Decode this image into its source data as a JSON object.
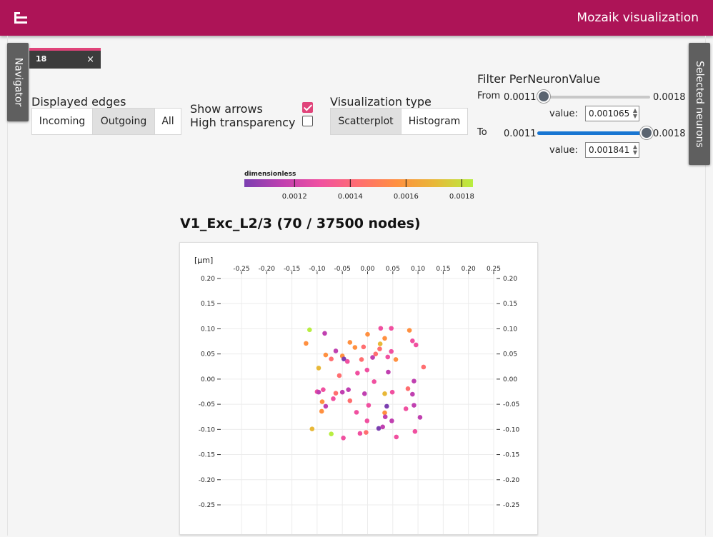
{
  "header": {
    "title": "Mozaik visualization",
    "logo": "tree-icon"
  },
  "navigator_label": "Navigator",
  "selected_label": "Selected neurons",
  "dock_tab": {
    "label": "18",
    "close": "×"
  },
  "displayed_edges": {
    "label": "Displayed edges",
    "options": [
      "Incoming",
      "Outgoing",
      "All"
    ],
    "selected": "Outgoing"
  },
  "arrows": {
    "show_label": "Show arrows",
    "show_checked": true,
    "transparency_label": "High transparency",
    "transparency_checked": false
  },
  "vis_type": {
    "label": "Visualization type",
    "options": [
      "Scatterplot",
      "Histogram"
    ],
    "selected": "Scatterplot"
  },
  "filter": {
    "title": "Filter PerNeuronValue",
    "from_label": "From",
    "to_label": "To",
    "min_label": "0.0011",
    "max_label": "0.0018",
    "min": 0.0011,
    "max": 0.0018,
    "from_value": 0.001065,
    "to_value": 0.001841,
    "value_label": "value:",
    "from_input": "0.001065",
    "to_input": "0.001841"
  },
  "colorbar": {
    "unit": "dimensionless",
    "min": 0.00102,
    "max": 0.00184,
    "ticks": [
      0.0012,
      0.0014,
      0.0016,
      0.0018
    ],
    "tick_labels": [
      "0.0012",
      "0.0014",
      "0.0016",
      "0.0018"
    ],
    "colors": [
      "#7b3fb0",
      "#c040b0",
      "#f050a0",
      "#ff6e70",
      "#ff9040",
      "#e8b838",
      "#b8ee40"
    ]
  },
  "chart_data": {
    "type": "scatter",
    "title": "V1_Exc_L2/3 (70 / 37500 nodes)",
    "unit_label": "[µm]",
    "xlim": [
      -0.25,
      0.25
    ],
    "ylim": [
      -0.25,
      0.2
    ],
    "xticks": [
      -0.25,
      -0.2,
      -0.15,
      -0.1,
      -0.05,
      0.0,
      0.05,
      0.1,
      0.15,
      0.2,
      0.25
    ],
    "yticks": [
      0.2,
      0.15,
      0.1,
      0.05,
      0.0,
      -0.05,
      -0.1,
      -0.15,
      -0.2,
      -0.25
    ],
    "xtick_labels": [
      "-0.25",
      "-0.20",
      "-0.15",
      "-0.10",
      "-0.05",
      "0.00",
      "0.05",
      "0.10",
      "0.15",
      "0.20",
      "0.25"
    ],
    "ytick_labels": [
      "0.20",
      "0.15",
      "0.10",
      "0.05",
      "0.00",
      "-0.05",
      "-0.10",
      "-0.15",
      "-0.20",
      "-0.25"
    ],
    "grid": true,
    "points": [
      {
        "x": -0.115,
        "y": 0.098,
        "c": "#b8ee40"
      },
      {
        "x": -0.085,
        "y": 0.091,
        "c": "#c040b0"
      },
      {
        "x": -0.122,
        "y": 0.071,
        "c": "#ff9040"
      },
      {
        "x": -0.063,
        "y": 0.056,
        "c": "#c040b0"
      },
      {
        "x": -0.035,
        "y": 0.073,
        "c": "#ff9040"
      },
      {
        "x": -0.025,
        "y": 0.063,
        "c": "#ff9040"
      },
      {
        "x": 0.0,
        "y": 0.089,
        "c": "#ff9040"
      },
      {
        "x": 0.026,
        "y": 0.101,
        "c": "#f050a0"
      },
      {
        "x": 0.047,
        "y": 0.101,
        "c": "#f050a0"
      },
      {
        "x": 0.083,
        "y": 0.097,
        "c": "#ff9040"
      },
      {
        "x": 0.034,
        "y": 0.081,
        "c": "#ff9040"
      },
      {
        "x": -0.008,
        "y": 0.064,
        "c": "#ff6e70"
      },
      {
        "x": 0.024,
        "y": 0.06,
        "c": "#ff6e70"
      },
      {
        "x": 0.025,
        "y": 0.07,
        "c": "#e8b838"
      },
      {
        "x": 0.089,
        "y": 0.076,
        "c": "#f050a0"
      },
      {
        "x": 0.096,
        "y": 0.068,
        "c": "#f050a0"
      },
      {
        "x": -0.083,
        "y": 0.048,
        "c": "#ff9040"
      },
      {
        "x": -0.072,
        "y": 0.04,
        "c": "#ff6e70"
      },
      {
        "x": -0.05,
        "y": 0.046,
        "c": "#ff9040"
      },
      {
        "x": -0.047,
        "y": 0.04,
        "c": "#7b3fb0"
      },
      {
        "x": -0.04,
        "y": 0.035,
        "c": "#f050a0"
      },
      {
        "x": -0.012,
        "y": 0.039,
        "c": "#ff6e70"
      },
      {
        "x": 0.016,
        "y": 0.05,
        "c": "#ff6e70"
      },
      {
        "x": 0.01,
        "y": 0.043,
        "c": "#c040b0"
      },
      {
        "x": 0.047,
        "y": 0.055,
        "c": "#f050a0"
      },
      {
        "x": 0.04,
        "y": 0.044,
        "c": "#f050a0"
      },
      {
        "x": 0.056,
        "y": 0.039,
        "c": "#ff9040"
      },
      {
        "x": 0.111,
        "y": 0.024,
        "c": "#ff6e70"
      },
      {
        "x": -0.097,
        "y": 0.022,
        "c": "#e8b838"
      },
      {
        "x": -0.02,
        "y": 0.012,
        "c": "#f050a0"
      },
      {
        "x": -0.001,
        "y": 0.018,
        "c": "#f050a0"
      },
      {
        "x": 0.041,
        "y": 0.014,
        "c": "#c040b0"
      },
      {
        "x": -0.056,
        "y": 0.007,
        "c": "#ff6e70"
      },
      {
        "x": 0.092,
        "y": -0.004,
        "c": "#c040b0"
      },
      {
        "x": -0.1,
        "y": -0.025,
        "c": "#f050a0"
      },
      {
        "x": -0.097,
        "y": -0.026,
        "c": "#c040b0"
      },
      {
        "x": -0.088,
        "y": -0.021,
        "c": "#f050a0"
      },
      {
        "x": -0.063,
        "y": -0.028,
        "c": "#ff6e70"
      },
      {
        "x": -0.05,
        "y": -0.026,
        "c": "#c040b0"
      },
      {
        "x": -0.038,
        "y": -0.021,
        "c": "#c040b0"
      },
      {
        "x": -0.006,
        "y": -0.029,
        "c": "#c040b0"
      },
      {
        "x": 0.034,
        "y": -0.029,
        "c": "#e8b838"
      },
      {
        "x": 0.049,
        "y": -0.026,
        "c": "#f050a0"
      },
      {
        "x": 0.08,
        "y": -0.019,
        "c": "#ff6e70"
      },
      {
        "x": 0.089,
        "y": -0.03,
        "c": "#c040b0"
      },
      {
        "x": -0.068,
        "y": -0.039,
        "c": "#f050a0"
      },
      {
        "x": -0.09,
        "y": -0.045,
        "c": "#ff9040"
      },
      {
        "x": -0.083,
        "y": -0.054,
        "c": "#c040b0"
      },
      {
        "x": -0.035,
        "y": -0.043,
        "c": "#ff6e70"
      },
      {
        "x": 0.002,
        "y": -0.052,
        "c": "#f050a0"
      },
      {
        "x": 0.038,
        "y": -0.054,
        "c": "#7b3fb0"
      },
      {
        "x": 0.076,
        "y": -0.059,
        "c": "#f050a0"
      },
      {
        "x": 0.092,
        "y": -0.052,
        "c": "#c040b0"
      },
      {
        "x": -0.091,
        "y": -0.064,
        "c": "#ff9040"
      },
      {
        "x": -0.022,
        "y": -0.066,
        "c": "#f050a0"
      },
      {
        "x": 0.034,
        "y": -0.067,
        "c": "#ff9040"
      },
      {
        "x": 0.035,
        "y": -0.075,
        "c": "#c040b0"
      },
      {
        "x": 0.104,
        "y": -0.076,
        "c": "#c040b0"
      },
      {
        "x": -0.001,
        "y": -0.083,
        "c": "#f050a0"
      },
      {
        "x": 0.048,
        "y": -0.083,
        "c": "#c040b0"
      },
      {
        "x": -0.11,
        "y": -0.099,
        "c": "#e8b838"
      },
      {
        "x": -0.072,
        "y": -0.109,
        "c": "#b8ee40"
      },
      {
        "x": -0.048,
        "y": -0.117,
        "c": "#f050a0"
      },
      {
        "x": -0.015,
        "y": -0.108,
        "c": "#f050a0"
      },
      {
        "x": -0.003,
        "y": -0.106,
        "c": "#ff6e70"
      },
      {
        "x": 0.022,
        "y": -0.098,
        "c": "#7b3fb0"
      },
      {
        "x": 0.03,
        "y": -0.095,
        "c": "#c040b0"
      },
      {
        "x": 0.057,
        "y": -0.115,
        "c": "#f050a0"
      },
      {
        "x": 0.094,
        "y": -0.104,
        "c": "#f050a0"
      },
      {
        "x": 0.013,
        "y": -0.005,
        "c": "#f050a0"
      }
    ]
  }
}
